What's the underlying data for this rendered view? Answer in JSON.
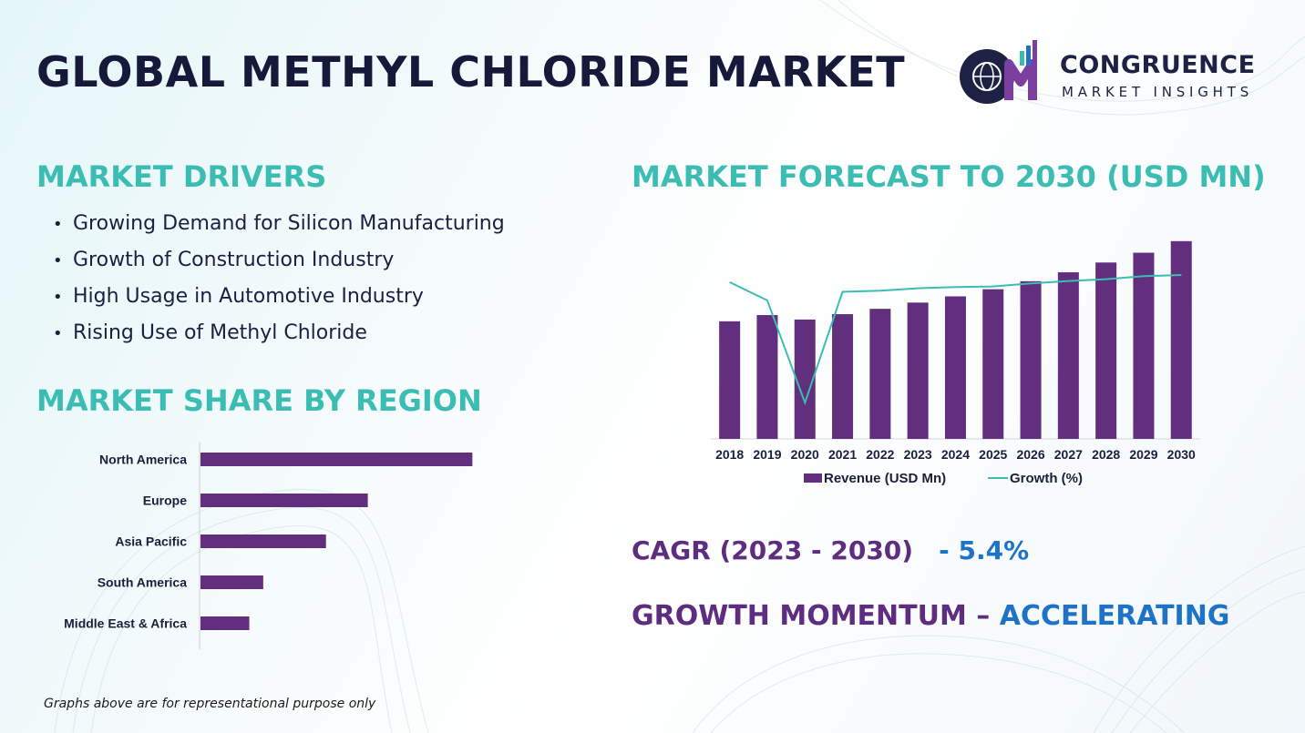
{
  "header": {
    "title": "GLOBAL METHYL CHLORIDE MARKET",
    "logo_word": "CONGRUENCE",
    "logo_sub": "MARKET INSIGHTS"
  },
  "drivers": {
    "title": "MARKET DRIVERS",
    "items": [
      "Growing Demand for Silicon Manufacturing",
      "Growth of Construction Industry",
      "High Usage in Automotive Industry",
      "Rising Use of Methyl Chloride"
    ]
  },
  "region": {
    "title": "MARKET SHARE BY REGION"
  },
  "forecast": {
    "title": "MARKET FORECAST TO 2030 (USD MN)"
  },
  "cagr": {
    "label": "CAGR (2023 - 2030)",
    "value": "- 5.4%"
  },
  "momentum": {
    "label": "GROWTH MOMENTUM –",
    "value": "ACCELERATING"
  },
  "footnote": "Graphs above are for representational purpose only",
  "colors": {
    "bar": "#622e7e",
    "line": "#3bbdb4",
    "section": "#3bbdb4",
    "accent_blue": "#1f73c6"
  },
  "chart_data": [
    {
      "type": "bar",
      "orientation": "horizontal",
      "categories": [
        "North America",
        "Europe",
        "Asia Pacific",
        "South America",
        "Middle East & Africa"
      ],
      "values": [
        39,
        24,
        18,
        9,
        7
      ],
      "xlim": [
        0,
        40
      ],
      "grid": false,
      "legend": "none"
    },
    {
      "type": "bar",
      "categories": [
        "2018",
        "2019",
        "2020",
        "2021",
        "2022",
        "2023",
        "2024",
        "2025",
        "2026",
        "2027",
        "2028",
        "2029",
        "2030"
      ],
      "series": [
        {
          "name": "Revenue (USD Mn)",
          "type": "bar",
          "values": [
            132,
            139,
            134,
            140,
            146,
            153,
            160,
            168,
            177,
            187,
            198,
            209,
            222
          ]
        },
        {
          "name": "Growth (%)",
          "type": "line",
          "values": [
            6,
            4.5,
            -4,
            5.2,
            5.3,
            5.5,
            5.6,
            5.65,
            5.9,
            6.1,
            6.25,
            6.5,
            6.6
          ]
        }
      ],
      "ylim": [
        0,
        230
      ],
      "y2lim": [
        -7,
        10
      ],
      "grid": false,
      "legend": "bottom"
    }
  ]
}
